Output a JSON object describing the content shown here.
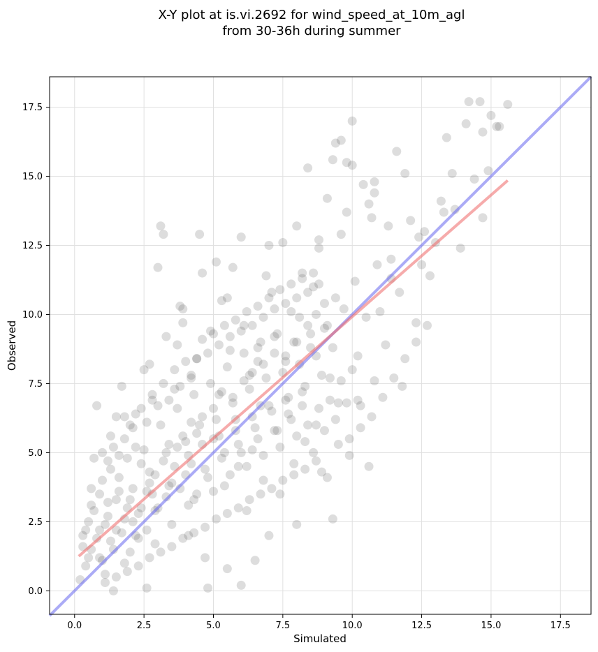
{
  "chart_data": {
    "type": "scatter",
    "title": "X-Y plot at is.vi.2692 for wind_speed_at_10m_agl",
    "subtitle": "from 30-36h during summer",
    "xlabel": "Simulated",
    "ylabel": "Observed",
    "xlim": [
      -0.9,
      18.6
    ],
    "ylim": [
      -0.85,
      18.6
    ],
    "xticks": [
      0.0,
      2.5,
      5.0,
      7.5,
      10.0,
      12.5,
      15.0,
      17.5
    ],
    "yticks": [
      0.0,
      2.5,
      5.0,
      7.5,
      10.0,
      12.5,
      15.0,
      17.5
    ],
    "xtick_labels": [
      "0.0",
      "2.5",
      "5.0",
      "7.5",
      "10.0",
      "12.5",
      "15.0",
      "17.5"
    ],
    "ytick_labels": [
      "0.0",
      "2.5",
      "5.0",
      "7.5",
      "10.0",
      "12.5",
      "15.0",
      "17.5"
    ],
    "grid": true,
    "colors": {
      "points": "#555555",
      "regression_line": "#ee6666",
      "identity_line": "#6666ee",
      "grid": "#e0e0e0"
    },
    "regression_line": {
      "x": [
        0.15,
        15.6
      ],
      "y": [
        1.25,
        14.85
      ]
    },
    "identity_line": {
      "x": [
        -0.9,
        18.6
      ],
      "y": [
        -0.9,
        18.6
      ]
    },
    "points": [
      [
        0.2,
        0.4
      ],
      [
        0.3,
        1.6
      ],
      [
        0.4,
        0.9
      ],
      [
        0.5,
        2.5
      ],
      [
        0.6,
        3.7
      ],
      [
        0.7,
        4.8
      ],
      [
        0.8,
        6.7
      ],
      [
        0.9,
        1.2
      ],
      [
        1.0,
        5.0
      ],
      [
        1.1,
        0.3
      ],
      [
        1.2,
        3.2
      ],
      [
        1.3,
        5.6
      ],
      [
        1.4,
        0.0
      ],
      [
        1.5,
        2.2
      ],
      [
        1.6,
        4.1
      ],
      [
        1.7,
        7.4
      ],
      [
        1.8,
        6.3
      ],
      [
        1.9,
        3.0
      ],
      [
        2.0,
        1.4
      ],
      [
        2.1,
        5.9
      ],
      [
        2.2,
        6.4
      ],
      [
        2.3,
        2.8
      ],
      [
        2.4,
        4.6
      ],
      [
        2.5,
        8.0
      ],
      [
        2.6,
        0.1
      ],
      [
        2.7,
        3.9
      ],
      [
        2.8,
        6.9
      ],
      [
        2.9,
        1.7
      ],
      [
        3.0,
        11.7
      ],
      [
        3.1,
        13.2
      ],
      [
        3.2,
        12.9
      ],
      [
        3.3,
        9.2
      ],
      [
        3.4,
        5.3
      ],
      [
        3.5,
        2.4
      ],
      [
        3.6,
        7.3
      ],
      [
        3.7,
        8.9
      ],
      [
        3.8,
        10.3
      ],
      [
        3.9,
        9.7
      ],
      [
        4.0,
        4.2
      ],
      [
        4.1,
        2.0
      ],
      [
        4.2,
        6.1
      ],
      [
        4.3,
        3.3
      ],
      [
        4.4,
        8.4
      ],
      [
        4.5,
        12.9
      ],
      [
        4.6,
        11.5
      ],
      [
        4.7,
        1.2
      ],
      [
        4.8,
        0.1
      ],
      [
        4.9,
        9.4
      ],
      [
        5.0,
        5.5
      ],
      [
        5.1,
        11.9
      ],
      [
        5.2,
        7.1
      ],
      [
        5.3,
        10.5
      ],
      [
        5.4,
        3.8
      ],
      [
        5.5,
        0.8
      ],
      [
        5.6,
        8.7
      ],
      [
        5.7,
        11.7
      ],
      [
        5.8,
        6.2
      ],
      [
        5.9,
        4.5
      ],
      [
        6.0,
        12.8
      ],
      [
        6.0,
        0.2
      ],
      [
        6.1,
        9.6
      ],
      [
        6.2,
        2.9
      ],
      [
        6.3,
        7.8
      ],
      [
        6.4,
        5.1
      ],
      [
        6.5,
        1.1
      ],
      [
        6.6,
        8.3
      ],
      [
        6.7,
        6.7
      ],
      [
        6.8,
        4.0
      ],
      [
        6.9,
        11.4
      ],
      [
        7.0,
        12.5
      ],
      [
        7.0,
        2.0
      ],
      [
        7.1,
        10.8
      ],
      [
        7.2,
        9.2
      ],
      [
        7.3,
        5.8
      ],
      [
        7.4,
        3.5
      ],
      [
        7.5,
        12.6
      ],
      [
        7.6,
        8.5
      ],
      [
        7.7,
        6.4
      ],
      [
        7.8,
        10.1
      ],
      [
        7.9,
        4.6
      ],
      [
        8.0,
        2.4
      ],
      [
        8.0,
        13.2
      ],
      [
        8.1,
        9.9
      ],
      [
        8.2,
        7.2
      ],
      [
        8.3,
        5.4
      ],
      [
        8.4,
        15.3
      ],
      [
        8.5,
        8.8
      ],
      [
        8.6,
        11.0
      ],
      [
        8.7,
        6.0
      ],
      [
        8.8,
        12.4
      ],
      [
        8.9,
        4.3
      ],
      [
        9.0,
        9.5
      ],
      [
        9.1,
        14.2
      ],
      [
        9.2,
        7.7
      ],
      [
        9.3,
        15.6
      ],
      [
        9.3,
        2.6
      ],
      [
        9.4,
        16.2
      ],
      [
        9.5,
        6.8
      ],
      [
        9.6,
        12.9
      ],
      [
        9.7,
        10.2
      ],
      [
        9.8,
        13.7
      ],
      [
        9.9,
        4.9
      ],
      [
        10.0,
        17.0
      ],
      [
        10.0,
        15.4
      ],
      [
        10.1,
        11.2
      ],
      [
        10.2,
        8.5
      ],
      [
        10.3,
        6.7
      ],
      [
        10.4,
        14.7
      ],
      [
        10.5,
        9.9
      ],
      [
        10.6,
        4.5
      ],
      [
        10.7,
        13.5
      ],
      [
        10.8,
        7.6
      ],
      [
        10.9,
        11.8
      ],
      [
        11.0,
        10.1
      ],
      [
        11.2,
        8.9
      ],
      [
        11.3,
        13.2
      ],
      [
        11.4,
        12.0
      ],
      [
        11.6,
        15.9
      ],
      [
        11.7,
        10.8
      ],
      [
        11.8,
        7.4
      ],
      [
        11.9,
        15.1
      ],
      [
        12.1,
        13.4
      ],
      [
        12.3,
        9.7
      ],
      [
        12.5,
        11.8
      ],
      [
        12.6,
        13.0
      ],
      [
        12.8,
        11.4
      ],
      [
        13.0,
        12.6
      ],
      [
        13.2,
        14.1
      ],
      [
        13.4,
        16.4
      ],
      [
        13.6,
        15.1
      ],
      [
        13.7,
        13.8
      ],
      [
        13.9,
        12.4
      ],
      [
        14.1,
        16.9
      ],
      [
        14.2,
        17.7
      ],
      [
        14.4,
        14.9
      ],
      [
        14.6,
        17.7
      ],
      [
        14.7,
        16.6
      ],
      [
        14.9,
        15.2
      ],
      [
        15.0,
        17.2
      ],
      [
        15.2,
        16.8
      ],
      [
        15.3,
        16.8
      ],
      [
        15.6,
        17.6
      ],
      [
        14.7,
        13.5
      ],
      [
        13.3,
        13.7
      ],
      [
        12.4,
        12.8
      ],
      [
        9.8,
        15.5
      ],
      [
        9.6,
        16.3
      ],
      [
        9.4,
        10.6
      ],
      [
        8.8,
        12.7
      ],
      [
        8.2,
        11.5
      ],
      [
        10.8,
        14.8
      ],
      [
        10.8,
        14.4
      ],
      [
        11.4,
        11.3
      ],
      [
        10.6,
        14.0
      ],
      [
        6.6,
        8.8
      ],
      [
        5.5,
        10.6
      ],
      [
        4.2,
        7.7
      ],
      [
        3.9,
        10.2
      ],
      [
        2.7,
        8.2
      ],
      [
        1.5,
        6.3
      ],
      [
        0.6,
        3.1
      ],
      [
        0.9,
        2.2
      ],
      [
        1.3,
        1.8
      ],
      [
        1.8,
        1.0
      ],
      [
        2.1,
        2.5
      ],
      [
        2.6,
        3.6
      ],
      [
        2.9,
        4.2
      ],
      [
        3.3,
        3.4
      ],
      [
        3.7,
        5.2
      ],
      [
        4.1,
        4.9
      ],
      [
        4.4,
        5.7
      ],
      [
        4.6,
        6.3
      ],
      [
        5.0,
        6.6
      ],
      [
        5.3,
        7.2
      ],
      [
        5.7,
        7.0
      ],
      [
        6.1,
        7.6
      ],
      [
        6.4,
        7.9
      ],
      [
        6.8,
        8.2
      ],
      [
        7.2,
        8.6
      ],
      [
        7.6,
        8.3
      ],
      [
        8.0,
        9.0
      ],
      [
        8.4,
        9.6
      ],
      [
        8.7,
        10.0
      ],
      [
        9.0,
        10.4
      ],
      [
        0.3,
        2.0
      ],
      [
        0.5,
        1.2
      ],
      [
        0.7,
        2.9
      ],
      [
        0.9,
        3.5
      ],
      [
        1.1,
        2.4
      ],
      [
        1.3,
        4.4
      ],
      [
        1.5,
        3.3
      ],
      [
        1.7,
        2.1
      ],
      [
        1.9,
        4.8
      ],
      [
        2.1,
        3.7
      ],
      [
        2.3,
        1.9
      ],
      [
        2.5,
        5.1
      ],
      [
        2.7,
        4.3
      ],
      [
        2.9,
        2.9
      ],
      [
        3.1,
        6.0
      ],
      [
        3.3,
        5.0
      ],
      [
        3.5,
        3.9
      ],
      [
        3.7,
        6.6
      ],
      [
        3.9,
        5.6
      ],
      [
        4.1,
        3.1
      ],
      [
        4.3,
        7.1
      ],
      [
        4.5,
        6.0
      ],
      [
        4.7,
        4.4
      ],
      [
        4.9,
        7.5
      ],
      [
        5.1,
        6.2
      ],
      [
        5.3,
        4.8
      ],
      [
        5.5,
        8.1
      ],
      [
        5.7,
        6.8
      ],
      [
        5.9,
        5.3
      ],
      [
        6.1,
        8.6
      ],
      [
        6.3,
        7.3
      ],
      [
        6.5,
        5.9
      ],
      [
        6.7,
        9.0
      ],
      [
        6.9,
        7.7
      ],
      [
        7.1,
        6.5
      ],
      [
        7.3,
        9.3
      ],
      [
        7.5,
        7.9
      ],
      [
        7.7,
        7.0
      ],
      [
        7.9,
        9.0
      ],
      [
        8.1,
        8.2
      ],
      [
        8.3,
        7.4
      ],
      [
        8.5,
        9.3
      ],
      [
        8.7,
        8.5
      ],
      [
        8.9,
        7.8
      ],
      [
        9.1,
        9.6
      ],
      [
        9.3,
        8.8
      ],
      [
        0.4,
        2.2
      ],
      [
        0.6,
        1.5
      ],
      [
        0.8,
        1.9
      ],
      [
        1.0,
        1.1
      ],
      [
        1.2,
        2.7
      ],
      [
        1.4,
        1.5
      ],
      [
        1.6,
        3.6
      ],
      [
        1.8,
        2.6
      ],
      [
        2.0,
        3.3
      ],
      [
        2.2,
        2.0
      ],
      [
        2.4,
        3.0
      ],
      [
        2.6,
        2.2
      ],
      [
        2.8,
        3.5
      ],
      [
        3.0,
        3.0
      ],
      [
        3.2,
        4.7
      ],
      [
        3.4,
        3.8
      ],
      [
        3.6,
        4.5
      ],
      [
        3.8,
        3.7
      ],
      [
        4.0,
        5.4
      ],
      [
        4.2,
        4.6
      ],
      [
        4.4,
        3.5
      ],
      [
        4.6,
        5.3
      ],
      [
        4.8,
        4.1
      ],
      [
        5.0,
        3.6
      ],
      [
        5.2,
        5.6
      ],
      [
        5.4,
        5.0
      ],
      [
        5.6,
        4.2
      ],
      [
        5.8,
        5.8
      ],
      [
        6.0,
        5.0
      ],
      [
        6.2,
        4.5
      ],
      [
        6.4,
        6.3
      ],
      [
        6.6,
        5.5
      ],
      [
        6.8,
        4.9
      ],
      [
        7.0,
        6.7
      ],
      [
        7.2,
        5.8
      ],
      [
        7.4,
        5.2
      ],
      [
        7.6,
        6.9
      ],
      [
        7.8,
        6.2
      ],
      [
        8.0,
        5.6
      ],
      [
        8.2,
        6.7
      ],
      [
        8.4,
        6.0
      ],
      [
        8.6,
        5.0
      ],
      [
        8.8,
        6.6
      ],
      [
        9.0,
        5.8
      ],
      [
        9.2,
        6.9
      ],
      [
        9.4,
        6.2
      ],
      [
        9.6,
        7.6
      ],
      [
        9.8,
        6.8
      ],
      [
        10.0,
        8.0
      ],
      [
        10.2,
        6.9
      ],
      [
        1.0,
        4.0
      ],
      [
        1.2,
        4.7
      ],
      [
        1.4,
        5.2
      ],
      [
        1.6,
        4.9
      ],
      [
        1.8,
        5.5
      ],
      [
        2.0,
        6.0
      ],
      [
        2.2,
        5.2
      ],
      [
        2.4,
        6.6
      ],
      [
        2.6,
        6.1
      ],
      [
        2.8,
        7.1
      ],
      [
        3.0,
        6.7
      ],
      [
        3.2,
        7.5
      ],
      [
        3.4,
        6.9
      ],
      [
        3.6,
        8.0
      ],
      [
        3.8,
        7.4
      ],
      [
        4.0,
        8.3
      ],
      [
        4.2,
        7.8
      ],
      [
        4.4,
        8.4
      ],
      [
        4.6,
        9.1
      ],
      [
        4.8,
        8.6
      ],
      [
        5.0,
        9.3
      ],
      [
        5.2,
        8.9
      ],
      [
        5.4,
        9.6
      ],
      [
        5.6,
        9.2
      ],
      [
        5.8,
        9.8
      ],
      [
        6.0,
        9.4
      ],
      [
        6.2,
        10.1
      ],
      [
        6.4,
        9.6
      ],
      [
        6.6,
        10.3
      ],
      [
        6.8,
        9.9
      ],
      [
        7.0,
        10.6
      ],
      [
        7.2,
        10.2
      ],
      [
        7.4,
        10.9
      ],
      [
        7.6,
        10.4
      ],
      [
        7.8,
        11.1
      ],
      [
        8.0,
        10.6
      ],
      [
        8.2,
        11.3
      ],
      [
        8.4,
        10.8
      ],
      [
        8.6,
        11.5
      ],
      [
        8.8,
        11.1
      ],
      [
        1.1,
        0.6
      ],
      [
        1.5,
        0.5
      ],
      [
        1.9,
        0.7
      ],
      [
        2.3,
        0.9
      ],
      [
        2.7,
        1.2
      ],
      [
        3.1,
        1.4
      ],
      [
        3.5,
        1.6
      ],
      [
        3.9,
        1.9
      ],
      [
        4.3,
        2.1
      ],
      [
        4.7,
        2.3
      ],
      [
        5.1,
        2.6
      ],
      [
        5.5,
        2.8
      ],
      [
        5.9,
        3.0
      ],
      [
        6.3,
        3.3
      ],
      [
        6.7,
        3.5
      ],
      [
        7.1,
        3.7
      ],
      [
        7.5,
        4.0
      ],
      [
        7.9,
        4.2
      ],
      [
        8.3,
        4.4
      ],
      [
        8.7,
        4.7
      ],
      [
        9.1,
        4.1
      ],
      [
        9.5,
        5.3
      ],
      [
        9.9,
        5.5
      ],
      [
        10.3,
        5.9
      ],
      [
        10.7,
        6.3
      ],
      [
        11.1,
        7.0
      ],
      [
        11.5,
        7.7
      ],
      [
        11.9,
        8.4
      ],
      [
        12.3,
        9.0
      ],
      [
        12.7,
        9.6
      ]
    ]
  }
}
